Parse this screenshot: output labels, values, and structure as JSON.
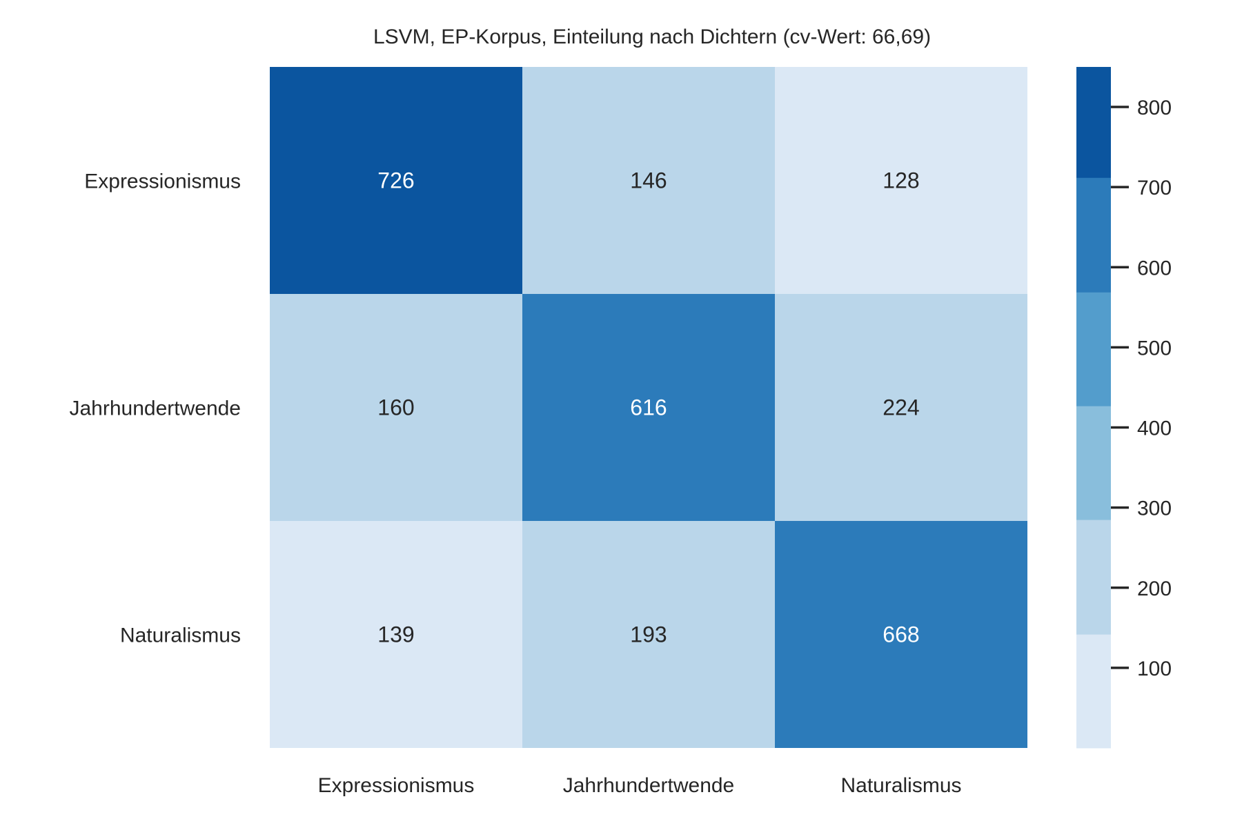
{
  "chart_data": {
    "type": "heatmap",
    "title": "LSVM, EP-Korpus, Einteilung nach Dichtern (cv-Wert: 66,69)",
    "xlabel": "",
    "ylabel": "",
    "row_labels": [
      "Expressionismus",
      "Jahrhundertwende",
      "Naturalismus"
    ],
    "col_labels": [
      "Expressionismus",
      "Jahrhundertwende",
      "Naturalismus"
    ],
    "values": [
      [
        726,
        146,
        128
      ],
      [
        160,
        616,
        224
      ],
      [
        139,
        193,
        668
      ]
    ],
    "colorbar": {
      "range": [
        0,
        850
      ],
      "ticks": [
        100,
        200,
        300,
        400,
        500,
        600,
        700,
        800
      ],
      "tick_labels": [
        "100",
        "200",
        "300",
        "400",
        "500",
        "600",
        "700",
        "800"
      ],
      "bin_colors": [
        "#dbe8f5",
        "#bad6ea",
        "#89bedc",
        "#539dcc",
        "#2c7bba",
        "#0b559f"
      ],
      "bin_edges": [
        0,
        142,
        285,
        427,
        569,
        712,
        850
      ]
    },
    "grid": false,
    "legend": "none",
    "text_colors": {
      "dark": "#262626",
      "light": "#ffffff"
    }
  }
}
